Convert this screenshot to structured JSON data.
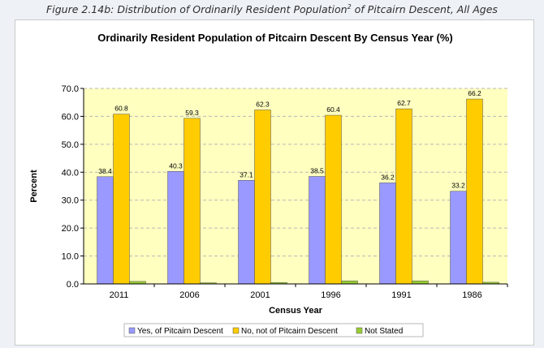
{
  "figure": {
    "caption_main": "Figure 2.14b: Distribution of Ordinarily Resident Population",
    "caption_sup": "2",
    "caption_tail": " of Pitcairn Descent, All Ages"
  },
  "chart_data": {
    "type": "bar",
    "title": "Ordinarily Resident Population of Pitcairn Descent By Census Year (%)",
    "xlabel": "Census Year",
    "ylabel": "Percent",
    "categories": [
      "2011",
      "2006",
      "2001",
      "1996",
      "1991",
      "1986"
    ],
    "ylim": [
      0,
      70
    ],
    "yticks": [
      "0.0",
      "10.0",
      "20.0",
      "30.0",
      "40.0",
      "50.0",
      "60.0",
      "70.0"
    ],
    "grid": true,
    "legend_position": "bottom",
    "series": [
      {
        "name": "Yes, of Pitcairn Descent",
        "color": "#9999ff",
        "values": [
          38.4,
          40.3,
          37.1,
          38.5,
          36.2,
          33.2
        ],
        "labels": [
          "38.4",
          "40.3",
          "37.1",
          "38.5",
          "36.2",
          "33.2"
        ]
      },
      {
        "name": "No, not of Pitcairn Descent",
        "color": "#ffcc00",
        "values": [
          60.8,
          59.3,
          62.3,
          60.4,
          62.7,
          66.2
        ],
        "labels": [
          "60.8",
          "59.3",
          "62.3",
          "60.4",
          "62.7",
          "66.2"
        ]
      },
      {
        "name": "Not Stated",
        "color": "#99cc33",
        "values": [
          0.9,
          0.4,
          0.5,
          1.1,
          1.1,
          0.6
        ],
        "labels": []
      }
    ],
    "plot_background": "#ffffc0"
  }
}
